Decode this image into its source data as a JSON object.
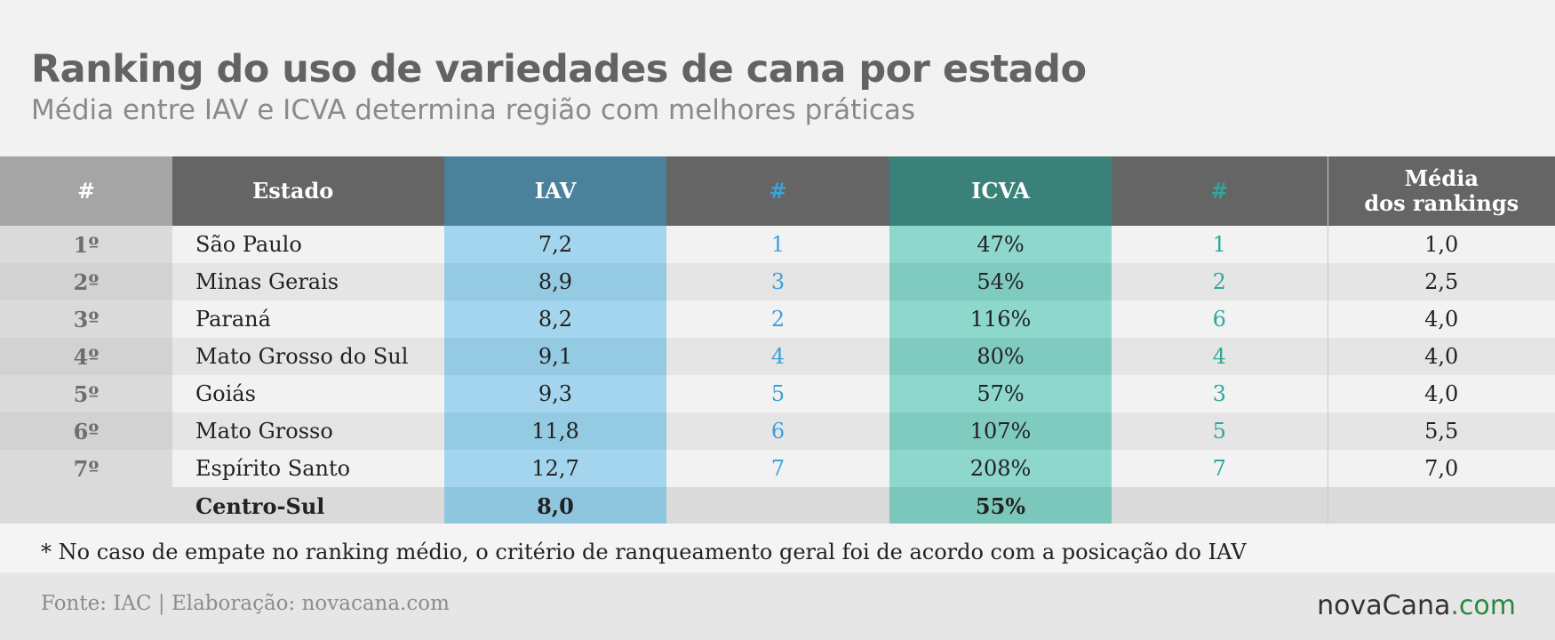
{
  "header": {
    "title": "Ranking do uso de variedades de cana por estado",
    "subtitle": "Média entre IAV e ICVA determina região com melhores práticas"
  },
  "table": {
    "columns": [
      "#",
      "Estado",
      "IAV",
      "#",
      "ICVA",
      "#",
      "Média",
      "dos rankings"
    ],
    "rows": [
      [
        "1º",
        "São Paulo",
        "7,2",
        "1",
        "47%",
        "1",
        "1,0"
      ],
      [
        "2º",
        "Minas Gerais",
        "8,9",
        "3",
        "54%",
        "2",
        "2,5"
      ],
      [
        "3º",
        "Paraná",
        "8,2",
        "2",
        "116%",
        "6",
        "4,0"
      ],
      [
        "4º",
        "Mato Grosso do Sul",
        "9,1",
        "4",
        "80%",
        "4",
        "4,0"
      ],
      [
        "5º",
        "Goiás",
        "9,3",
        "5",
        "57%",
        "3",
        "4,0"
      ],
      [
        "6º",
        "Mato Grosso",
        "11,8",
        "6",
        "107%",
        "5",
        "5,5"
      ],
      [
        "7º",
        "Espírito Santo",
        "12,7",
        "7",
        "208%",
        "7",
        "7,0"
      ]
    ],
    "total": {
      "label": "Centro-Sul",
      "iav": "8,0",
      "icva": "55%"
    }
  },
  "note": "* No caso de empate no ranking médio, o critério de ranqueamento geral foi de acordo com a posicação do IAV",
  "footer": {
    "source": "Fonte: IAC | Elaboração: novacana.com",
    "logo_main": "novaCana",
    "logo_suffix": ".com"
  },
  "colors": {
    "iav_header": "#4a829c",
    "iav_cell": "#a3d6ee",
    "icva_header": "#3a8279",
    "icva_cell": "#8dd7cc",
    "iav_rank_text": "#3aa3dc",
    "icva_rank_text": "#2ea79b",
    "logo_accent": "#2b8a3e"
  }
}
